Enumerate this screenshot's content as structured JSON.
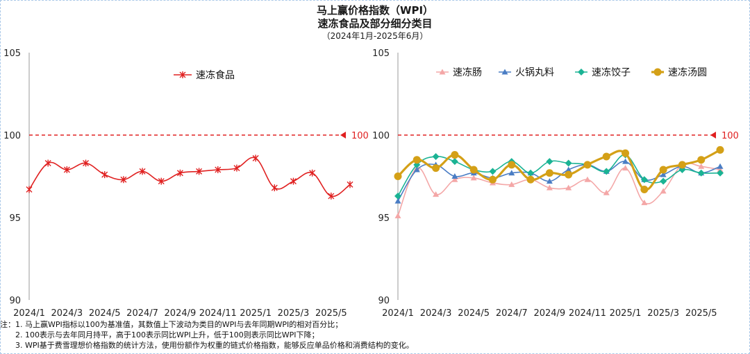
{
  "title": {
    "line1": "马上赢价格指数（WPI）",
    "line2": "速冻食品及部分细分类目",
    "line3": "（2024年1月-2025年6月）"
  },
  "notes": [
    "注：1. 马上赢WPI指标以100为基准值，其数值上下波动为类目的WPI与去年同期WPI的相对百分比；",
    "2. 100表示与去年同月持平，高于100表示同比WPI上升，低于100则表示同比WPI下降；",
    "3. WPI基于费雪理想价格指数的统计方法，使用份额作为权重的链式价格指数，能够反应单品价格和消费结构的变化。"
  ],
  "chart_data": [
    {
      "type": "line",
      "x": [
        "2024/1",
        "2024/2",
        "2024/3",
        "2024/4",
        "2024/5",
        "2024/6",
        "2024/7",
        "2024/8",
        "2024/9",
        "2024/10",
        "2024/11",
        "2024/12",
        "2025/1",
        "2025/2",
        "2025/3",
        "2025/4",
        "2025/5",
        "2025/6"
      ],
      "xtick_labels": [
        "2024/1",
        "2024/3",
        "2024/5",
        "2024/7",
        "2024/9",
        "2024/11",
        "2025/1",
        "2025/3",
        "2025/5"
      ],
      "ylim": [
        90,
        105
      ],
      "yticks": [
        90,
        95,
        100,
        105
      ],
      "reference_line": {
        "value": 100,
        "label": "100",
        "color": "#e02020"
      },
      "legend_position": "top-center",
      "series": [
        {
          "name": "速冻食品",
          "color": "#e02020",
          "marker": "star",
          "values": [
            96.7,
            98.3,
            97.9,
            98.3,
            97.6,
            97.3,
            97.8,
            97.2,
            97.7,
            97.8,
            97.9,
            98.0,
            98.6,
            96.8,
            97.2,
            97.7,
            96.3,
            97.0
          ]
        }
      ]
    },
    {
      "type": "line",
      "x": [
        "2024/1",
        "2024/2",
        "2024/3",
        "2024/4",
        "2024/5",
        "2024/6",
        "2024/7",
        "2024/8",
        "2024/9",
        "2024/10",
        "2024/11",
        "2024/12",
        "2025/1",
        "2025/2",
        "2025/3",
        "2025/4",
        "2025/5",
        "2025/6"
      ],
      "xtick_labels": [
        "2024/1",
        "2024/3",
        "2024/5",
        "2024/7",
        "2024/9",
        "2024/11",
        "2025/1",
        "2025/3",
        "2025/5"
      ],
      "ylim": [
        90,
        105
      ],
      "yticks": [
        90,
        95,
        100,
        105
      ],
      "reference_line": {
        "value": 100,
        "label": "100",
        "color": "#e02020"
      },
      "legend_position": "top",
      "series": [
        {
          "name": "速冻肠",
          "color": "#f4a7a7",
          "marker": "triangle",
          "values": [
            95.1,
            98.0,
            96.4,
            97.3,
            97.4,
            97.1,
            97.0,
            97.3,
            96.8,
            96.8,
            97.3,
            96.5,
            98.0,
            95.9,
            96.6,
            98.2,
            98.1,
            97.9
          ]
        },
        {
          "name": "火锅丸料",
          "color": "#4a7dc4",
          "marker": "triangle",
          "values": [
            96.0,
            97.9,
            98.2,
            97.5,
            97.7,
            97.4,
            97.7,
            97.7,
            97.2,
            97.9,
            98.2,
            97.8,
            98.4,
            97.3,
            97.6,
            98.1,
            97.7,
            98.1
          ]
        },
        {
          "name": "速冻饺子",
          "color": "#1ab394",
          "marker": "diamond",
          "values": [
            96.3,
            98.2,
            98.7,
            98.4,
            97.9,
            97.8,
            98.4,
            97.7,
            98.4,
            98.3,
            98.2,
            97.8,
            98.8,
            97.3,
            97.2,
            97.9,
            97.7,
            97.7
          ]
        },
        {
          "name": "速冻汤圆",
          "color": "#d4a017",
          "marker": "circle",
          "values": [
            97.5,
            98.5,
            98.0,
            98.8,
            97.9,
            97.3,
            98.2,
            97.3,
            97.7,
            97.6,
            98.2,
            98.7,
            98.9,
            96.7,
            97.9,
            98.2,
            98.5,
            99.1
          ]
        }
      ]
    }
  ]
}
